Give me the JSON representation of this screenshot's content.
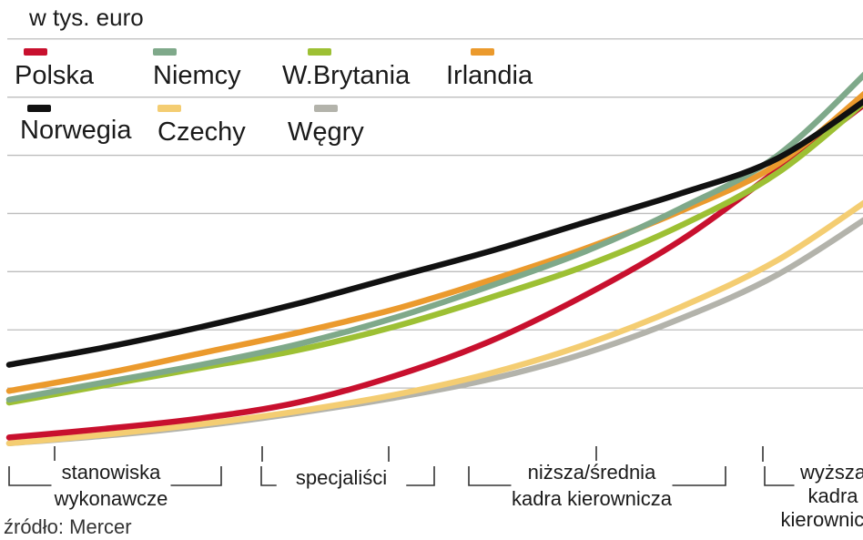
{
  "chart_data": {
    "type": "line",
    "unit_label": "w tys. euro",
    "source": "źródło: Mercer",
    "grid": true,
    "ylim": [
      0,
      7.2
    ],
    "gridlines": [
      1,
      2,
      3,
      4,
      5,
      6,
      7
    ],
    "x": [
      0,
      1,
      2,
      3,
      4,
      5,
      6,
      7,
      8,
      9
    ],
    "category_groups": [
      {
        "lines": [
          "stanowiska",
          "wykonawcze"
        ]
      },
      {
        "lines": [
          "specjaliści"
        ]
      },
      {
        "lines": [
          "niższa/średnia",
          "kadra kierownicza"
        ]
      },
      {
        "lines": [
          "wyższa",
          "kadra",
          "kierownicza"
        ]
      }
    ],
    "series": [
      {
        "name": "Polska",
        "color": "#c8102e",
        "values": [
          0.15,
          0.3,
          0.48,
          0.75,
          1.2,
          1.8,
          2.6,
          3.55,
          4.75,
          6.0
        ]
      },
      {
        "name": "Niemcy",
        "color": "#7fa98a",
        "values": [
          0.8,
          1.1,
          1.4,
          1.75,
          2.2,
          2.75,
          3.35,
          4.1,
          5.0,
          6.55
        ]
      },
      {
        "name": "W.Brytania",
        "color": "#9dc034",
        "values": [
          0.75,
          1.05,
          1.35,
          1.65,
          2.05,
          2.55,
          3.1,
          3.8,
          4.7,
          6.05
        ]
      },
      {
        "name": "Irlandia",
        "color": "#eb9a2d",
        "values": [
          0.95,
          1.25,
          1.6,
          1.95,
          2.35,
          2.85,
          3.4,
          4.05,
          4.85,
          6.2
        ]
      },
      {
        "name": "Norwegia",
        "color": "#111111",
        "values": [
          1.4,
          1.7,
          2.05,
          2.45,
          2.9,
          3.35,
          3.85,
          4.35,
          4.95,
          6.05
        ]
      },
      {
        "name": "Czechy",
        "color": "#f4cd72",
        "values": [
          0.05,
          0.2,
          0.38,
          0.6,
          0.88,
          1.25,
          1.75,
          2.4,
          3.2,
          4.3
        ]
      },
      {
        "name": "Węgry",
        "color": "#b3b3ab",
        "values": [
          0.05,
          0.18,
          0.35,
          0.57,
          0.83,
          1.15,
          1.6,
          2.2,
          2.95,
          4.0
        ]
      }
    ]
  }
}
